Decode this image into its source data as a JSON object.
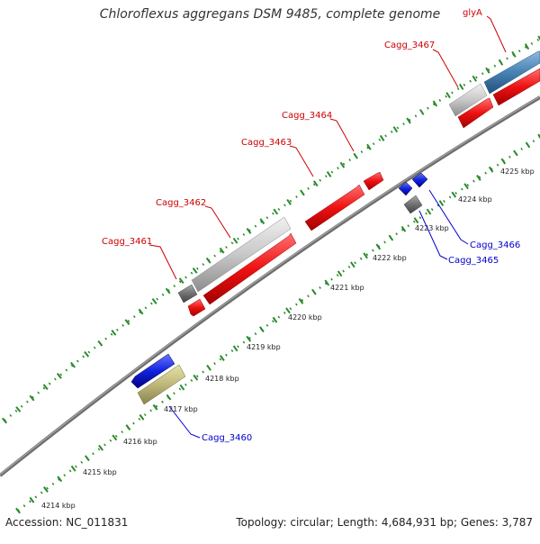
{
  "title": "Chloroflexus aggregans DSM 9485, complete genome",
  "footer": {
    "accession": "Accession: NC_011831",
    "summary": "Topology: circular; Length: 4,684,931 bp; Genes: 3,787"
  },
  "ticks": [
    "4214 kbp",
    "4215 kbp",
    "4216 kbp",
    "4217 kbp",
    "4218 kbp",
    "4219 kbp",
    "4220 kbp",
    "4221 kbp",
    "4222 kbp",
    "4223 kbp",
    "4224 kbp",
    "4225 kbp"
  ],
  "genes": {
    "cagg_3461": "Cagg_3461",
    "cagg_3462": "Cagg_3462",
    "cagg_3463": "Cagg_3463",
    "cagg_3464": "Cagg_3464",
    "cagg_3467": "Cagg_3467",
    "glya": "glyA",
    "cagg_3460": "Cagg_3460",
    "cagg_3465": "Cagg_3465",
    "cagg_3466": "Cagg_3466"
  },
  "colors": {
    "forward_label": "#cc0000",
    "reverse_label": "#0000cc",
    "cds_red": "#ee1111",
    "cds_blue": "#1122dd",
    "gene_grey": "#c8c8c8",
    "rna_olive": "#bdb77a",
    "glya_blue": "#4682b4",
    "backbone": "#888888",
    "dots": "#2a8a2a"
  }
}
